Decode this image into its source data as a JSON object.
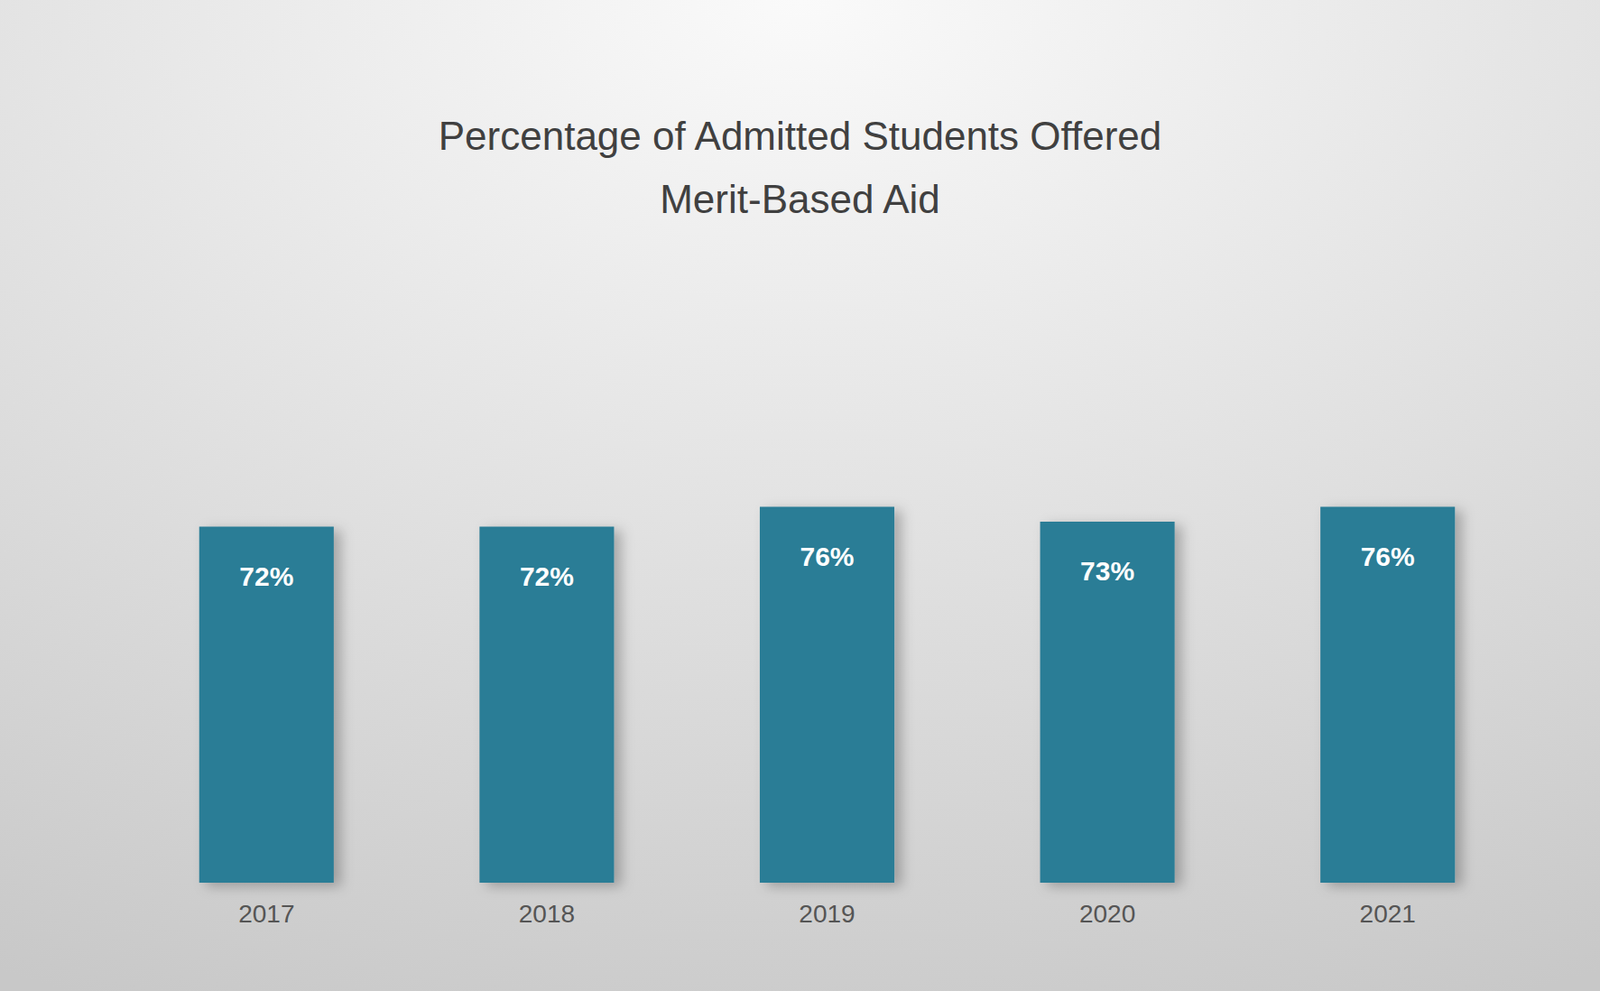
{
  "chart_data": {
    "type": "bar",
    "title": "Percentage of Admitted Students Offered\nMerit-Based Aid",
    "categories": [
      "2017",
      "2018",
      "2019",
      "2020",
      "2021"
    ],
    "values": [
      72,
      72,
      76,
      73,
      76
    ],
    "value_labels": [
      "72%",
      "72%",
      "76%",
      "73%",
      "76%"
    ],
    "color": "#2b7d96",
    "ylim": [
      0,
      100
    ],
    "data_labels": true,
    "tick_labels": "x",
    "grid": false
  }
}
